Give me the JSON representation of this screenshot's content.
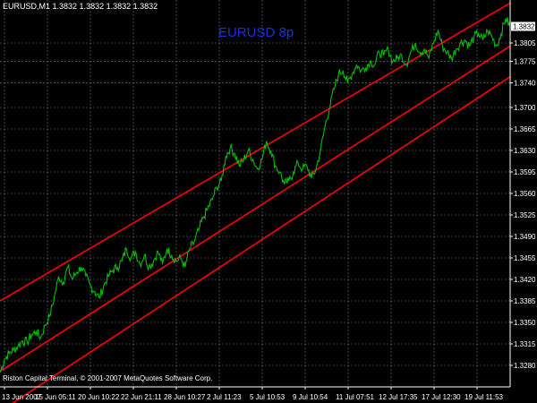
{
  "header": {
    "symbol": "EURUSD,M1",
    "quote": "1.3832 1.3832 1.3832 1.3832"
  },
  "overlay_title": "EURUSD  8p",
  "footer": "Riston Capital Terminal, © 2001-2007 MetaQuotes Software Corp.",
  "colors": {
    "background": "#000000",
    "grid": "#708090",
    "price": "#00c000",
    "channel": "#ff0000",
    "axis_text": "#ffffff",
    "title": "#1a2fe0"
  },
  "chart_data": {
    "type": "line",
    "title": "EURUSD  8p",
    "grid": true,
    "ylim": [
      1.3245,
      1.3875
    ],
    "y_ticks": [
      "1.3805",
      "1.3775",
      "1.3740",
      "1.3700",
      "1.3665",
      "1.3630",
      "1.3595",
      "1.3560",
      "1.3525",
      "1.3490",
      "1.3455",
      "1.3420",
      "1.3385",
      "1.3350",
      "1.3315",
      "1.3280"
    ],
    "x_ticks": [
      "13 Jun 2007",
      "15 Jun 05:11",
      "20 Jun 10:22",
      "22 Jun 21:11",
      "28 Jun 10:27",
      "2 Jul 11:23",
      "5 Jul 10:53",
      "9 Jul 10:54",
      "11 Jul 07:51",
      "12 Jul 17:35",
      "17 Jul 12:30",
      "19 Jul 11:53"
    ],
    "last_price": "1.3832",
    "series": [
      {
        "x": [
          0,
          5,
          10,
          15,
          20,
          25,
          30,
          35,
          40,
          45,
          50,
          55,
          60,
          65,
          70,
          75,
          80,
          85,
          90,
          95,
          100,
          105,
          110,
          115,
          120,
          125,
          130,
          135,
          140,
          145,
          150,
          155,
          160,
          165,
          170,
          175,
          180,
          185,
          190,
          195,
          200,
          205,
          210,
          215,
          220,
          225,
          230,
          235,
          240,
          245,
          250,
          255,
          260,
          265,
          270,
          275,
          280,
          285,
          290,
          295,
          300,
          305,
          310,
          315,
          320,
          325,
          330,
          335,
          340,
          345,
          350,
          355,
          360,
          365,
          370,
          375,
          380,
          385,
          390,
          395,
          400,
          405,
          410,
          415,
          420,
          425,
          430,
          435,
          440,
          445,
          450,
          455,
          460,
          465,
          470,
          475,
          480,
          485,
          490,
          495,
          500,
          505,
          510,
          515,
          520,
          525,
          530,
          535,
          540,
          545,
          550,
          555,
          560,
          565
        ],
        "y": [
          1.3268,
          1.329,
          1.33,
          1.3305,
          1.3312,
          1.332,
          1.3318,
          1.333,
          1.3335,
          1.3325,
          1.3345,
          1.336,
          1.339,
          1.3425,
          1.3415,
          1.344,
          1.342,
          1.3432,
          1.344,
          1.3425,
          1.341,
          1.34,
          1.339,
          1.341,
          1.3425,
          1.3435,
          1.344,
          1.345,
          1.347,
          1.3455,
          1.3465,
          1.3445,
          1.346,
          1.344,
          1.345,
          1.3465,
          1.3445,
          1.347,
          1.346,
          1.345,
          1.3455,
          1.344,
          1.347,
          1.348,
          1.35,
          1.352,
          1.3535,
          1.355,
          1.357,
          1.358,
          1.362,
          1.3635,
          1.3625,
          1.3605,
          1.3615,
          1.363,
          1.3615,
          1.36,
          1.3615,
          1.3645,
          1.363,
          1.3605,
          1.3595,
          1.3575,
          1.358,
          1.3595,
          1.361,
          1.36,
          1.3605,
          1.3585,
          1.36,
          1.363,
          1.367,
          1.37,
          1.373,
          1.3755,
          1.376,
          1.374,
          1.3755,
          1.377,
          1.376,
          1.3765,
          1.3775,
          1.377,
          1.379,
          1.3785,
          1.3795,
          1.3775,
          1.378,
          1.3785,
          1.377,
          1.379,
          1.3805,
          1.379,
          1.3795,
          1.378,
          1.3805,
          1.3825,
          1.38,
          1.379,
          1.378,
          1.3795,
          1.3805,
          1.381,
          1.38,
          1.3815,
          1.382,
          1.381,
          1.3825,
          1.3815,
          1.38,
          1.382,
          1.3845,
          1.3832
        ]
      }
    ],
    "channel_lines": [
      {
        "x": [
          0,
          565
        ],
        "y": [
          1.3385,
          1.387
        ]
      },
      {
        "x": [
          0,
          565
        ],
        "y": [
          1.327,
          1.38
        ]
      },
      {
        "x": [
          0,
          565
        ],
        "y": [
          1.3205,
          1.375
        ]
      }
    ]
  }
}
